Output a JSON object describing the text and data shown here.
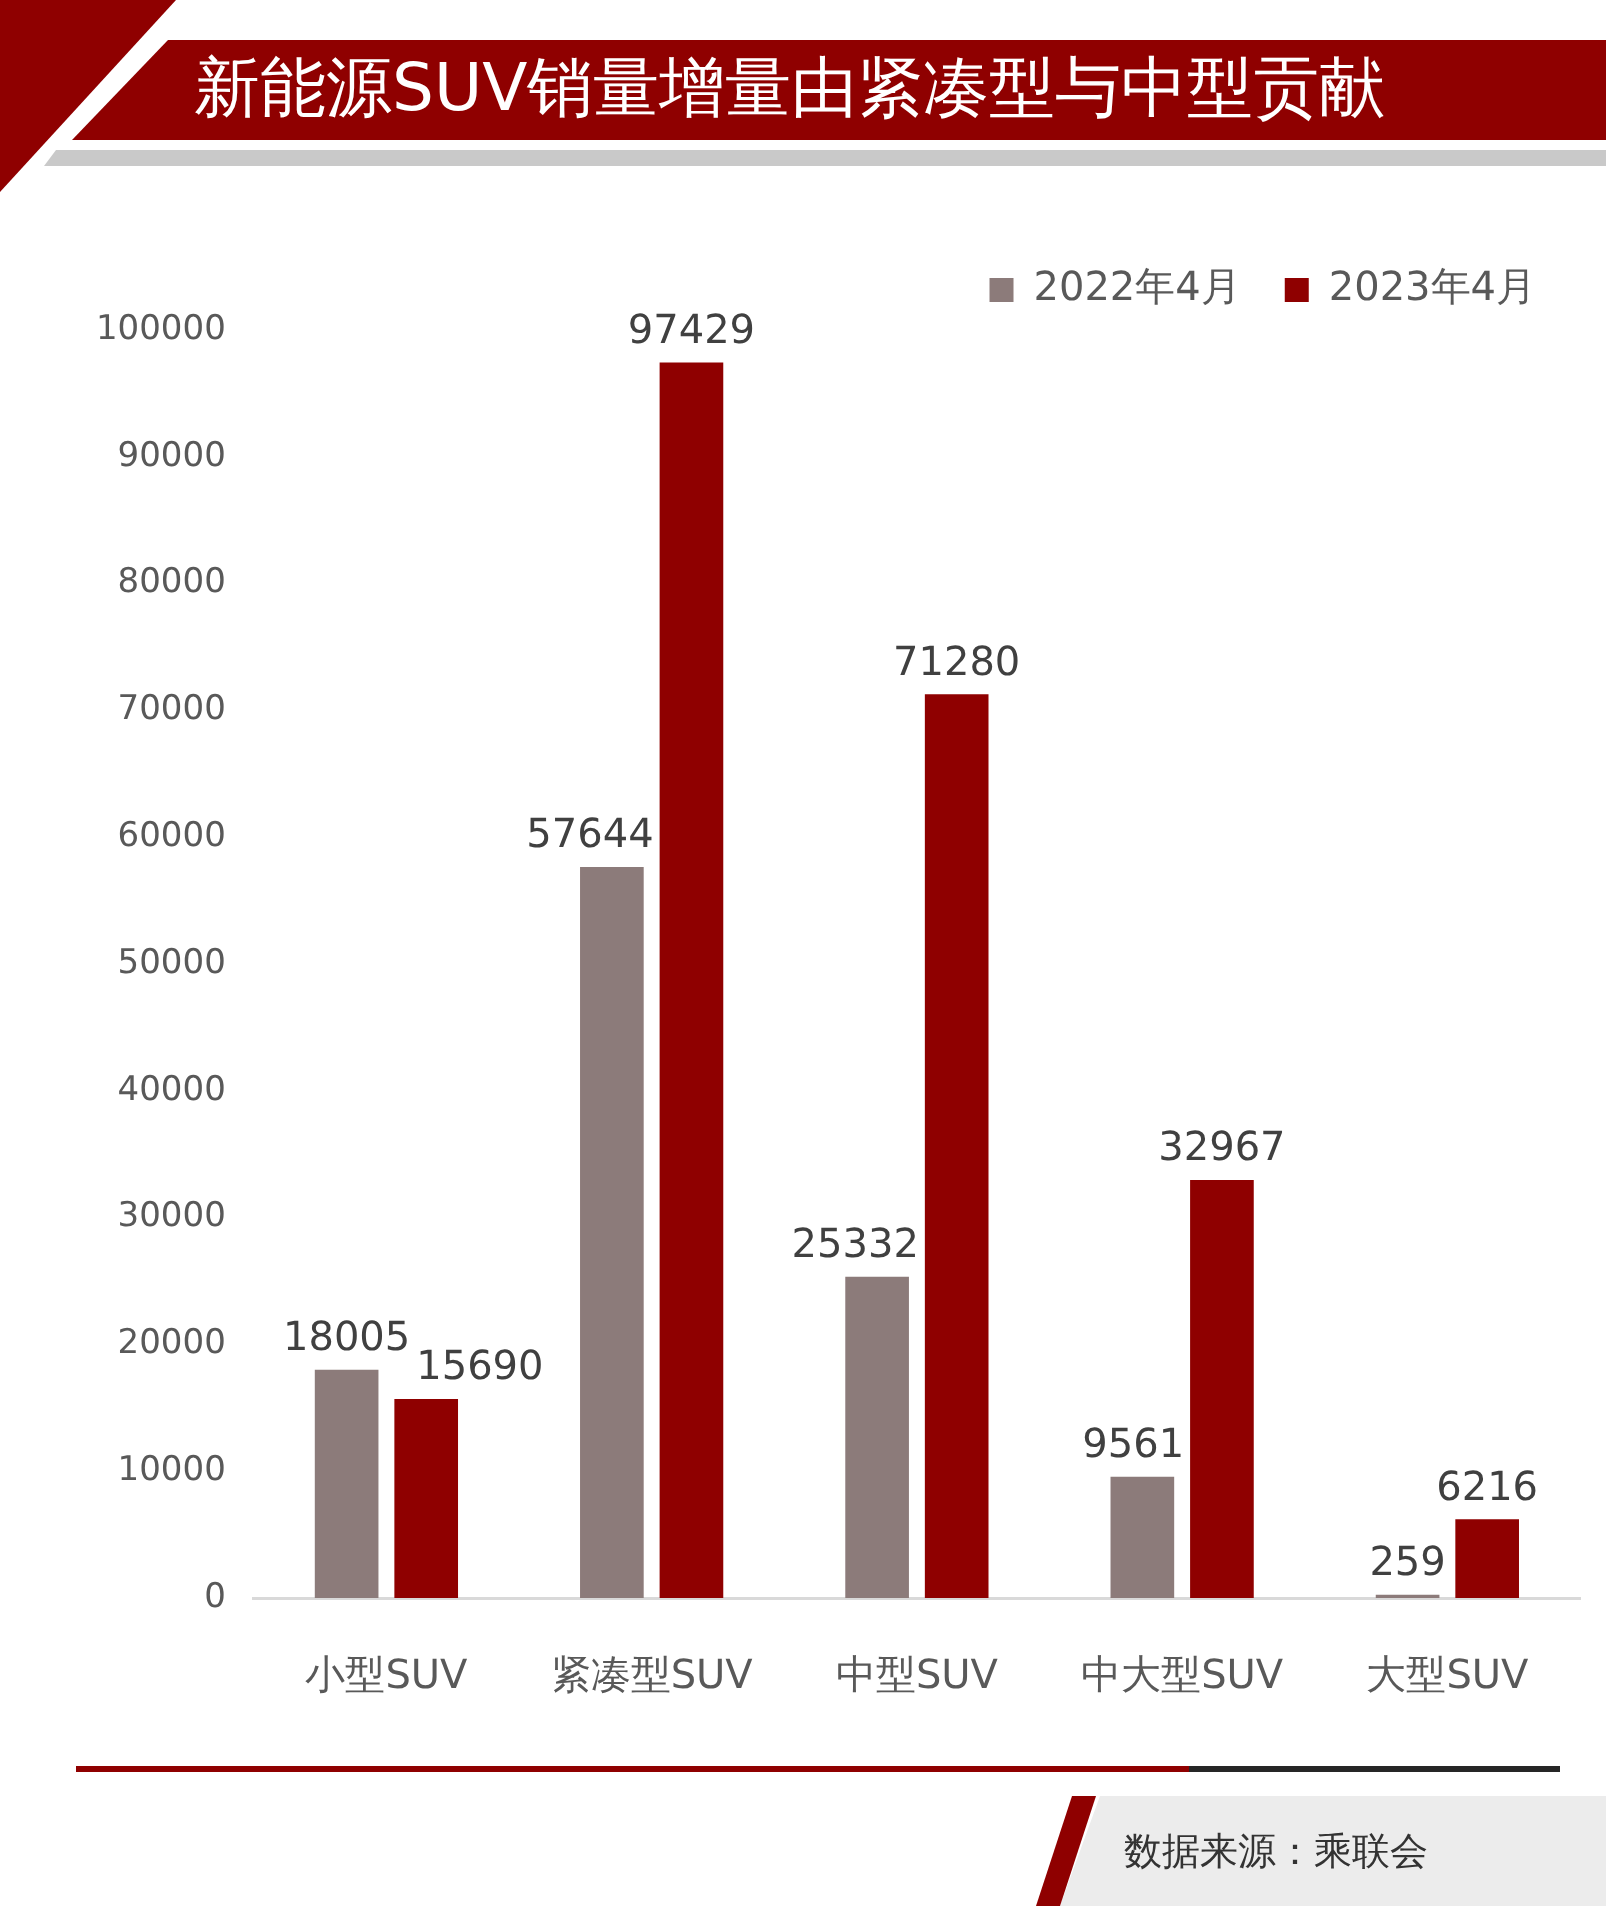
{
  "chart_data": {
    "type": "bar",
    "title": "新能源SUV销量增量由紧凑型与中型贡献",
    "categories": [
      "小型SUV",
      "紧凑型SUV",
      "中型SUV",
      "中大型SUV",
      "大型SUV"
    ],
    "series": [
      {
        "name": "2022年4月",
        "color": "#8c7b7a",
        "values": [
          18005,
          57644,
          25332,
          9561,
          259
        ]
      },
      {
        "name": "2023年4月",
        "color": "#8f0000",
        "values": [
          15690,
          97429,
          71280,
          32967,
          6216
        ]
      }
    ],
    "ylim": [
      0,
      100000
    ],
    "yticks": [
      0,
      10000,
      20000,
      30000,
      40000,
      50000,
      60000,
      70000,
      80000,
      90000,
      100000
    ],
    "legend": "top right",
    "data_labels": true,
    "annotations": [
      "数据来源：乘联会"
    ]
  }
}
